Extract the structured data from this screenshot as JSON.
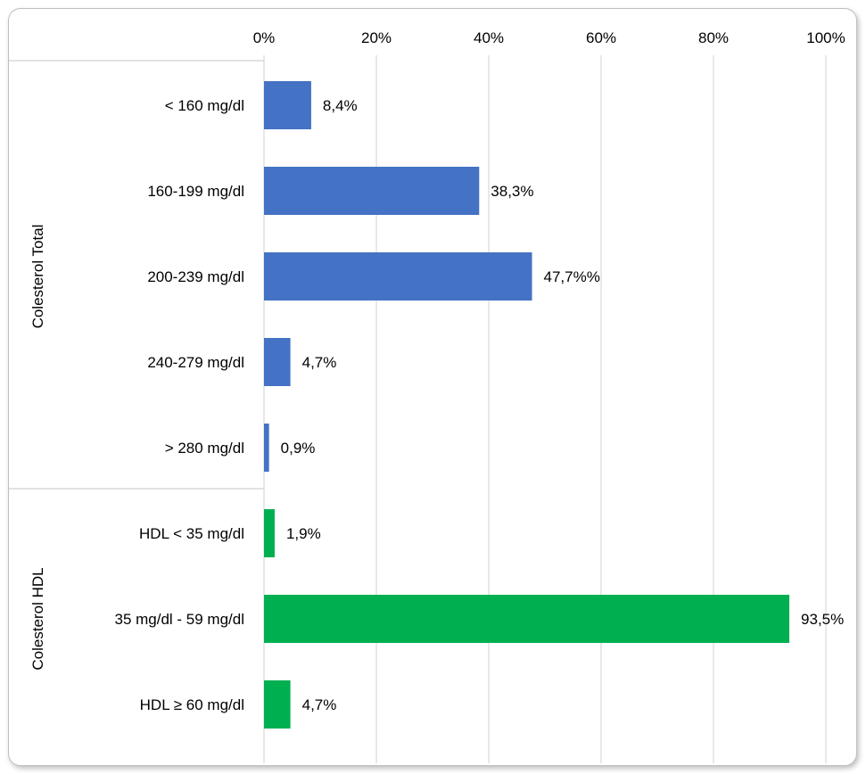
{
  "chart_data": {
    "type": "bar",
    "orientation": "horizontal",
    "title": "",
    "xlabel": "",
    "ylabel": "",
    "xlim": [
      0,
      100
    ],
    "x_ticks": [
      "0%",
      "20%",
      "40%",
      "60%",
      "80%",
      "100%"
    ],
    "x_tick_values": [
      0,
      20,
      40,
      60,
      80,
      100
    ],
    "x_axis_position": "top",
    "grid": true,
    "legend": false,
    "groups": [
      {
        "label": "Colesterol Total",
        "color": "#4472C4",
        "categories": [
          "< 160 mg/dl",
          "160-199 mg/dl",
          "200-239 mg/dl",
          "240-279 mg/dl",
          "> 280 mg/dl"
        ],
        "values": [
          8.4,
          38.3,
          47.7,
          4.7,
          0.9
        ],
        "data_labels": [
          "8,4%",
          "38,3%",
          "47,7%%",
          "4,7%",
          "0,9%"
        ]
      },
      {
        "label": "Colesterol HDL",
        "color": "#00B050",
        "categories": [
          "HDL < 35 mg/dl",
          "35 mg/dl - 59 mg/dl",
          "HDL ≥ 60 mg/dl"
        ],
        "values": [
          1.9,
          93.5,
          4.7
        ],
        "data_labels": [
          "1,9%",
          "93,5%",
          "4,7%"
        ]
      }
    ]
  }
}
